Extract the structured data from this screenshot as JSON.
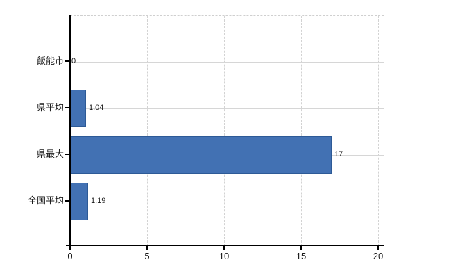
{
  "chart_data": {
    "type": "bar",
    "orientation": "horizontal",
    "title": "",
    "xlabel": "",
    "ylabel": "",
    "categories": [
      "飯能市",
      "県平均",
      "県最大",
      "全国平均"
    ],
    "values": [
      0,
      1.04,
      17,
      1.19
    ],
    "value_labels": [
      "0",
      "1.04",
      "17",
      "1.19"
    ],
    "xlim": [
      0,
      20
    ],
    "xticks": [
      0,
      5,
      10,
      15,
      20
    ],
    "grid": "vertical-dashed",
    "legend": "none",
    "colors": {
      "bar_fill": "#4271b3",
      "bar_border": "#2d5a96",
      "gridline": "#d2d2d2",
      "category_line": "#d6d6d6",
      "axis": "#000000",
      "text": "#1a1a1a",
      "background": "#ffffff"
    }
  }
}
